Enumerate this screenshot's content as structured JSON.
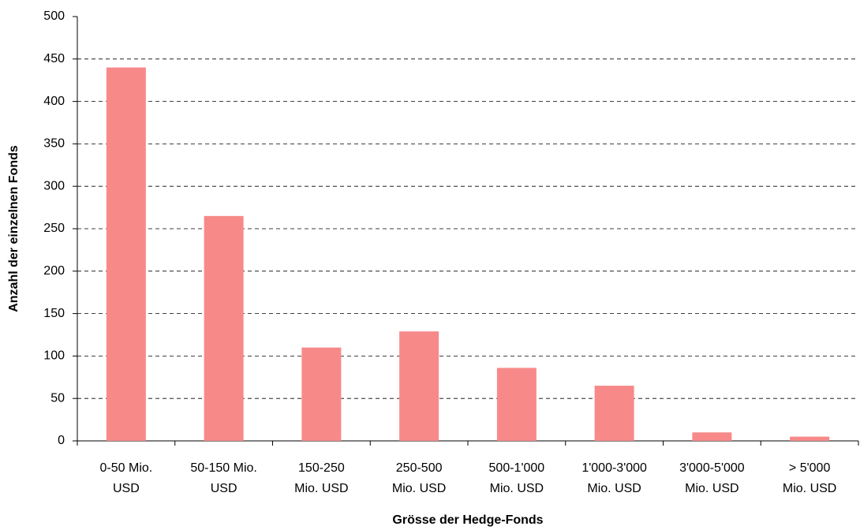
{
  "chart_data": {
    "type": "bar",
    "x_label": "Grösse der Hedge-Fonds",
    "y_label": "Anzahl der einzelnen Fonds",
    "categories": [
      [
        "0-50 Mio.",
        "USD"
      ],
      [
        "50-150 Mio.",
        "USD"
      ],
      [
        "150-250",
        "Mio. USD"
      ],
      [
        "250-500",
        "Mio. USD"
      ],
      [
        "500-1'000",
        "Mio. USD"
      ],
      [
        "1'000-3'000",
        "Mio. USD"
      ],
      [
        "3'000-5'000",
        "Mio. USD"
      ],
      [
        "> 5'000",
        "Mio. USD"
      ]
    ],
    "values": [
      440,
      265,
      110,
      129,
      86,
      65,
      10,
      5
    ],
    "color": "#f78a89",
    "ylim": [
      0,
      500
    ],
    "yticks": [
      0,
      50,
      100,
      150,
      200,
      250,
      300,
      350,
      400,
      450,
      500
    ],
    "grid": true
  }
}
